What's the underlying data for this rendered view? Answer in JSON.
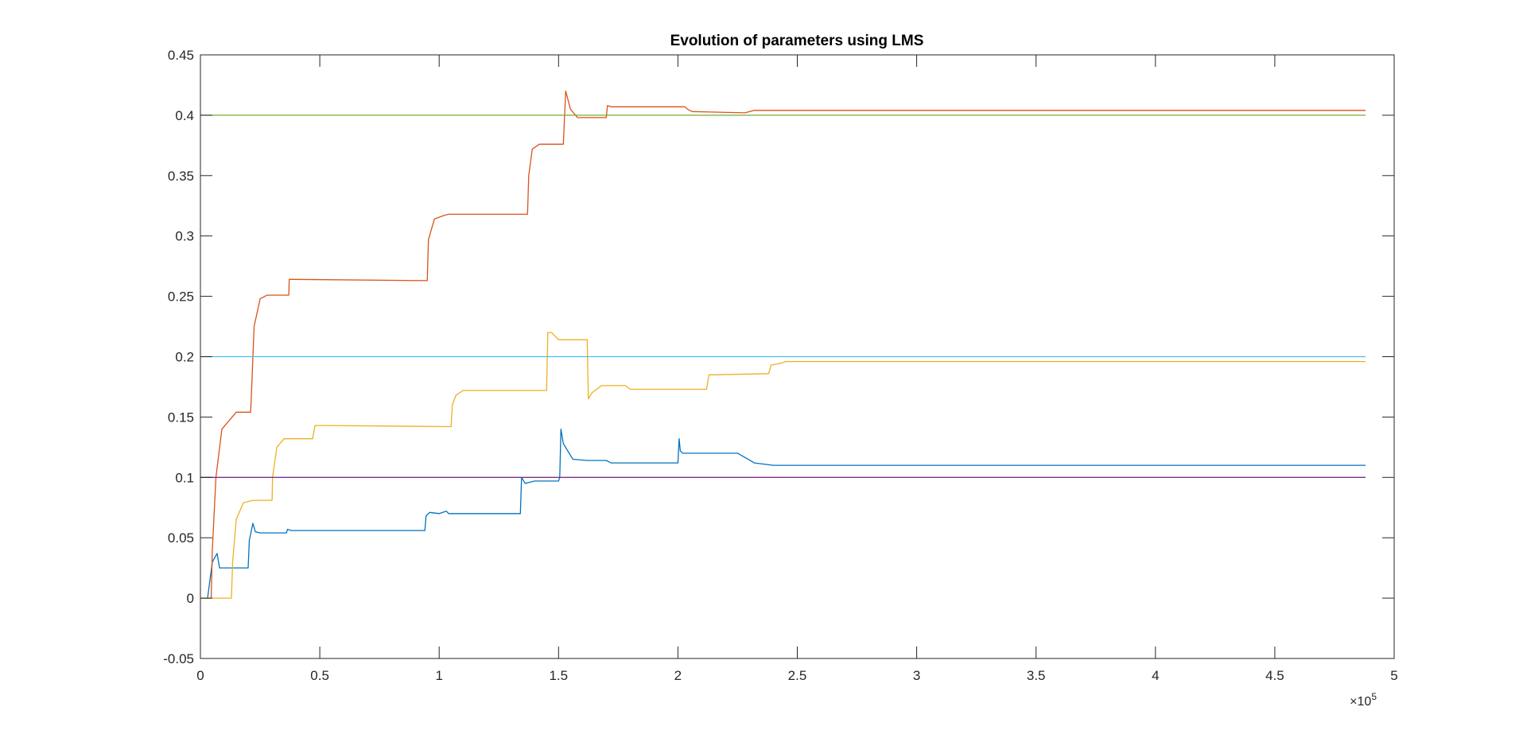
{
  "chart_data": {
    "type": "line",
    "title": "Evolution of parameters using LMS",
    "xlabel": "",
    "ylabel": "",
    "xlim": [
      0,
      500000
    ],
    "ylim": [
      -0.05,
      0.45
    ],
    "x_ticks": [
      0,
      50000,
      100000,
      150000,
      200000,
      250000,
      300000,
      350000,
      400000,
      450000,
      500000
    ],
    "x_tick_labels": [
      "0",
      "0.5",
      "1",
      "1.5",
      "2",
      "2.5",
      "3",
      "3.5",
      "4",
      "4.5",
      "5"
    ],
    "y_ticks": [
      -0.05,
      0,
      0.05,
      0.1,
      0.15,
      0.2,
      0.25,
      0.3,
      0.35,
      0.4,
      0.45
    ],
    "y_tick_labels": [
      "-0.05",
      "0",
      "0.05",
      "0.1",
      "0.15",
      "0.2",
      "0.25",
      "0.3",
      "0.35",
      "0.4",
      "0.45"
    ],
    "x_exponent_base": "×10",
    "x_exponent_power": "5",
    "grid": false,
    "series": [
      {
        "color": "#0072BD",
        "x": [
          0,
          3000,
          5000,
          7000,
          8000,
          20000,
          20500,
          22000,
          23000,
          25000,
          36000,
          36500,
          38000,
          94000,
          94500,
          96000,
          100000,
          103000,
          104000,
          108000,
          134000,
          134500,
          136000,
          140000,
          150000,
          150500,
          151000,
          152000,
          156000,
          162000,
          170000,
          171000,
          172000,
          200000,
          200500,
          201000,
          202000,
          206000,
          225000,
          232000,
          240000,
          488000
        ],
        "y": [
          0,
          0,
          0.03,
          0.037,
          0.025,
          0.025,
          0.048,
          0.062,
          0.055,
          0.054,
          0.054,
          0.057,
          0.056,
          0.056,
          0.068,
          0.071,
          0.07,
          0.072,
          0.07,
          0.07,
          0.07,
          0.1,
          0.095,
          0.097,
          0.097,
          0.1,
          0.14,
          0.128,
          0.115,
          0.114,
          0.114,
          0.113,
          0.112,
          0.112,
          0.132,
          0.122,
          0.12,
          0.12,
          0.12,
          0.112,
          0.11,
          0.11
        ]
      },
      {
        "color": "#D95319",
        "x": [
          0,
          4500,
          5000,
          6500,
          9000,
          15000,
          21000,
          21200,
          22500,
          25000,
          28000,
          37000,
          37200,
          39000,
          95000,
          95500,
          98000,
          102000,
          104000,
          137000,
          137500,
          139000,
          142000,
          152000,
          152500,
          153000,
          155000,
          158000,
          170000,
          170500,
          172000,
          203000,
          204000,
          206000,
          228000,
          232000,
          488000
        ],
        "y": [
          0,
          0,
          0.04,
          0.1,
          0.14,
          0.154,
          0.154,
          0.16,
          0.225,
          0.248,
          0.251,
          0.251,
          0.264,
          0.264,
          0.263,
          0.297,
          0.314,
          0.317,
          0.318,
          0.318,
          0.35,
          0.372,
          0.376,
          0.376,
          0.398,
          0.42,
          0.405,
          0.398,
          0.398,
          0.408,
          0.407,
          0.407,
          0.405,
          0.403,
          0.402,
          0.404,
          0.404
        ]
      },
      {
        "color": "#EDB120",
        "x": [
          0,
          13000,
          13500,
          15000,
          18000,
          22000,
          30000,
          30200,
          32000,
          35000,
          47000,
          48000,
          51000,
          105000,
          105500,
          107000,
          110000,
          145000,
          145500,
          147000,
          150000,
          162000,
          162500,
          164000,
          168000,
          178000,
          180000,
          212000,
          213000,
          215000,
          238000,
          239000,
          244000,
          245000,
          488000
        ],
        "y": [
          0,
          0,
          0.03,
          0.065,
          0.079,
          0.081,
          0.081,
          0.1,
          0.125,
          0.132,
          0.132,
          0.143,
          0.143,
          0.142,
          0.16,
          0.168,
          0.172,
          0.172,
          0.22,
          0.22,
          0.214,
          0.214,
          0.165,
          0.17,
          0.176,
          0.176,
          0.173,
          0.173,
          0.185,
          0.185,
          0.186,
          0.193,
          0.195,
          0.196,
          0.196
        ]
      },
      {
        "color": "#7E2F8E",
        "x": [
          0,
          488000
        ],
        "y": [
          0.1,
          0.1
        ]
      },
      {
        "color": "#77AC30",
        "x": [
          0,
          488000
        ],
        "y": [
          0.4,
          0.4
        ]
      },
      {
        "color": "#4DBEEE",
        "x": [
          0,
          488000
        ],
        "y": [
          0.2,
          0.2
        ]
      }
    ]
  }
}
